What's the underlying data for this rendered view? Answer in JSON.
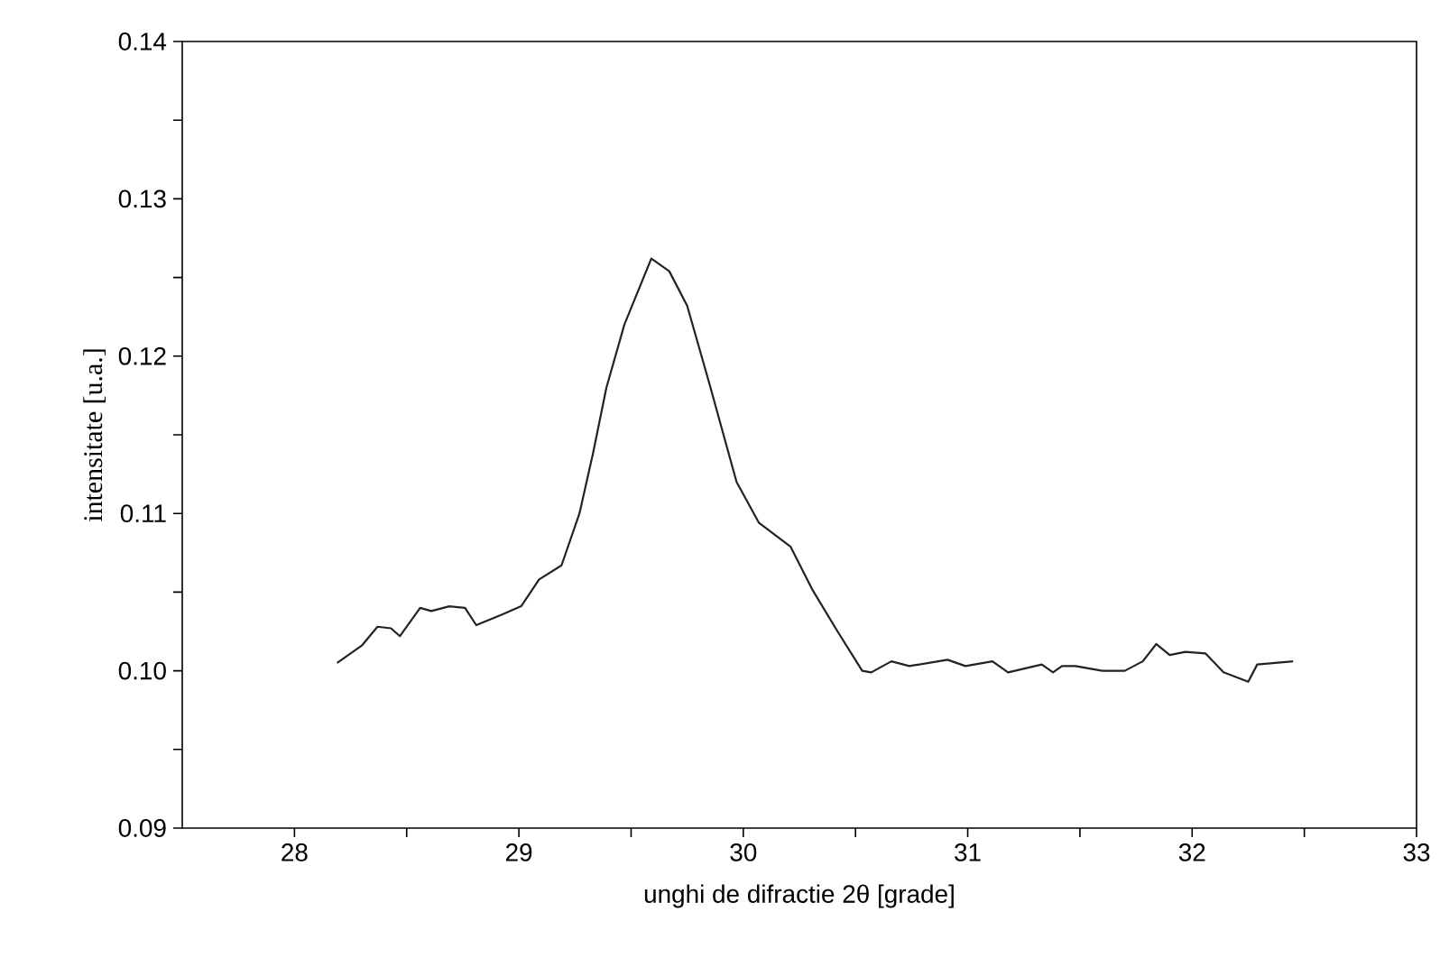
{
  "chart_data": {
    "type": "line",
    "xlabel": "unghi de difractie  2θ  [grade]",
    "ylabel": "intensitate  [u.a.]",
    "xlim": [
      27.5,
      33
    ],
    "ylim": [
      0.09,
      0.14
    ],
    "xticks": [
      28,
      29,
      30,
      31,
      32,
      33,
      {
        "value": 28.5,
        "label": null
      },
      {
        "value": 29.5,
        "label": null
      },
      {
        "value": 30.5,
        "label": null
      },
      {
        "value": 31.5,
        "label": null
      },
      {
        "value": 32.5,
        "label": null
      }
    ],
    "yticks": [
      {
        "value": 0.09,
        "label": "0.09"
      },
      {
        "value": 0.1,
        "label": "0.10"
      },
      {
        "value": 0.11,
        "label": "0.11"
      },
      {
        "value": 0.12,
        "label": "0.12"
      },
      {
        "value": 0.13,
        "label": "0.13"
      },
      {
        "value": 0.14,
        "label": "0.14"
      },
      {
        "value": 0.095,
        "label": null
      },
      {
        "value": 0.105,
        "label": null
      },
      {
        "value": 0.115,
        "label": null
      },
      {
        "value": 0.125,
        "label": null
      },
      {
        "value": 0.135,
        "label": null
      }
    ],
    "grid": false,
    "marker": "none",
    "line_style": "solid",
    "series": [
      {
        "color": "#222222",
        "x": [
          28.19,
          28.3,
          28.37,
          28.43,
          28.47,
          28.56,
          28.61,
          28.69,
          28.76,
          28.81,
          28.93,
          29.01,
          29.09,
          29.19,
          29.27,
          29.33,
          29.39,
          29.47,
          29.59,
          29.67,
          29.75,
          29.85,
          29.97,
          30.07,
          30.21,
          30.31,
          30.42,
          30.53,
          30.57,
          30.66,
          30.74,
          30.91,
          30.99,
          31.11,
          31.18,
          31.33,
          31.38,
          31.42,
          31.48,
          31.6,
          31.7,
          31.78,
          31.84,
          31.9,
          31.97,
          32.06,
          32.14,
          32.25,
          32.29,
          32.45
        ],
        "values": [
          0.1005,
          0.1016,
          0.1028,
          0.1027,
          0.1022,
          0.104,
          0.1038,
          0.1041,
          0.104,
          0.1029,
          0.1036,
          0.1041,
          0.1058,
          0.1067,
          0.11,
          0.1138,
          0.118,
          0.122,
          0.1262,
          0.1254,
          0.1232,
          0.1182,
          0.112,
          0.1094,
          0.1079,
          0.1051,
          0.1025,
          0.1,
          0.0999,
          0.1006,
          0.1003,
          0.1007,
          0.1003,
          0.1006,
          0.0999,
          0.1004,
          0.0999,
          0.1003,
          0.1003,
          0.1,
          0.1,
          0.1006,
          0.1017,
          0.101,
          0.1012,
          0.1011,
          0.0999,
          0.0993,
          0.1004,
          0.1006
        ]
      }
    ]
  }
}
